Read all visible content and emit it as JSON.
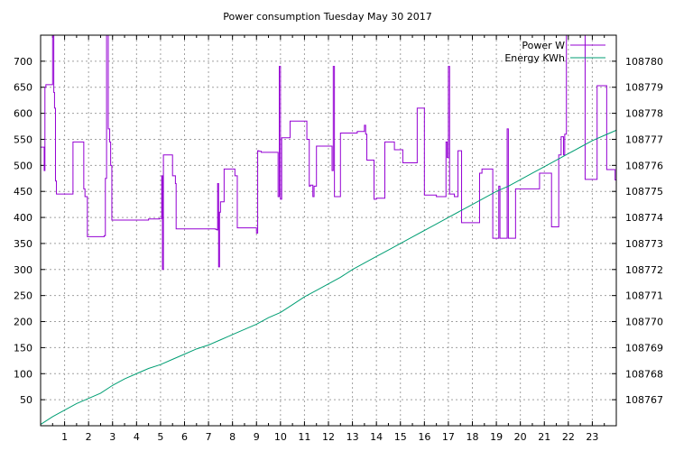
{
  "chart_data": {
    "type": "line",
    "title": "Power consumption Tuesday May 30 2017",
    "xlabel": "",
    "ylabel": "",
    "y2label": "",
    "xlim": [
      0,
      24
    ],
    "ylim": [
      0,
      750
    ],
    "y2lim": [
      108766,
      108781
    ],
    "x_ticks": [
      1,
      2,
      3,
      4,
      5,
      6,
      7,
      8,
      9,
      10,
      11,
      12,
      13,
      14,
      15,
      16,
      17,
      18,
      19,
      20,
      21,
      22,
      23
    ],
    "y_ticks": [
      50,
      100,
      150,
      200,
      250,
      300,
      350,
      400,
      450,
      500,
      550,
      600,
      650,
      700
    ],
    "y2_ticks": [
      108767,
      108768,
      108769,
      108770,
      108771,
      108772,
      108773,
      108774,
      108775,
      108776,
      108777,
      108778,
      108779,
      108780
    ],
    "grid": true,
    "legend_position": "top-right",
    "colors": {
      "power": "#9400d3",
      "energy": "#009e73"
    },
    "series": [
      {
        "name": "Power W",
        "axis": "left",
        "style": "step",
        "x": [
          0,
          0.15,
          0.18,
          0.22,
          0.5,
          0.55,
          0.58,
          0.62,
          0.66,
          1.35,
          1.8,
          1.85,
          1.95,
          2.65,
          2.7,
          2.75,
          2.82,
          2.88,
          2.92,
          2.97,
          3.05,
          3.15,
          3.2,
          3.3,
          4.0,
          4.5,
          4.95,
          5.05,
          5.08,
          5.12,
          5.15,
          5.5,
          5.62,
          5.65,
          7.3,
          7.35,
          7.38,
          7.42,
          7.46,
          7.5,
          7.65,
          8.1,
          8.2,
          9.0,
          9.05,
          9.1,
          9.2,
          9.85,
          9.9,
          9.95,
          10.0,
          10.05,
          10.4,
          11.1,
          11.2,
          11.25,
          11.35,
          11.4,
          11.5,
          12.15,
          12.2,
          12.25,
          12.5,
          12.85,
          13.2,
          13.5,
          13.55,
          13.6,
          13.9,
          14.0,
          14.35,
          14.75,
          15.05,
          15.1,
          15.7,
          15.8,
          16.0,
          16.5,
          16.9,
          16.95,
          17.0,
          17.05,
          17.25,
          17.4,
          17.55,
          18.3,
          18.4,
          18.85,
          19.0,
          19.1,
          19.15,
          19.45,
          19.5,
          19.8,
          20.7,
          20.8,
          21.3,
          21.6,
          21.7,
          21.8,
          21.85,
          21.92,
          22.7,
          22.9,
          23.2,
          23.6,
          23.95
        ],
        "values": [
          535,
          490,
          650,
          655,
          750,
          640,
          610,
          470,
          445,
          545,
          455,
          440,
          363,
          365,
          475,
          750,
          570,
          545,
          500,
          395,
          395,
          395,
          395,
          395,
          395,
          397,
          398,
          480,
          300,
          520,
          520,
          480,
          465,
          378,
          377,
          376,
          465,
          305,
          410,
          430,
          493,
          480,
          380,
          370,
          528,
          527,
          525,
          525,
          440,
          690,
          435,
          553,
          585,
          550,
          460,
          462,
          440,
          460,
          537,
          490,
          690,
          440,
          562,
          562,
          565,
          577,
          560,
          510,
          435,
          437,
          545,
          530,
          530,
          505,
          610,
          610,
          443,
          440,
          545,
          515,
          690,
          445,
          440,
          528,
          390,
          485,
          493,
          360,
          360,
          460,
          360,
          570,
          360,
          455,
          455,
          485,
          382,
          520,
          555,
          520,
          560,
          750,
          473,
          473,
          653,
          492,
          472
        ]
      },
      {
        "name": "Energy KWh",
        "axis": "right",
        "style": "line",
        "x": [
          0,
          0.5,
          1,
          1.5,
          2,
          2.5,
          3,
          3.5,
          4,
          4.5,
          5,
          5.5,
          6,
          6.5,
          7,
          7.5,
          8,
          8.5,
          9,
          9.5,
          10,
          10.5,
          11,
          11.5,
          12,
          12.5,
          13,
          13.5,
          14,
          14.5,
          15,
          15.5,
          16,
          16.5,
          17,
          17.5,
          18,
          18.5,
          19,
          19.5,
          20,
          20.5,
          21,
          21.5,
          22,
          22.5,
          23,
          23.5,
          24
        ],
        "values": [
          108766.05,
          108766.35,
          108766.6,
          108766.85,
          108767.05,
          108767.25,
          108767.55,
          108767.8,
          108768.0,
          108768.2,
          108768.35,
          108768.55,
          108768.75,
          108768.95,
          108769.1,
          108769.3,
          108769.5,
          108769.7,
          108769.9,
          108770.15,
          108770.35,
          108770.65,
          108770.95,
          108771.2,
          108771.45,
          108771.7,
          108772.0,
          108772.25,
          108772.5,
          108772.75,
          108773.0,
          108773.25,
          108773.5,
          108773.75,
          108774.0,
          108774.25,
          108774.5,
          108774.75,
          108775.0,
          108775.2,
          108775.45,
          108775.7,
          108775.95,
          108776.2,
          108776.45,
          108776.7,
          108776.95,
          108777.15,
          108777.35
        ]
      }
    ]
  }
}
